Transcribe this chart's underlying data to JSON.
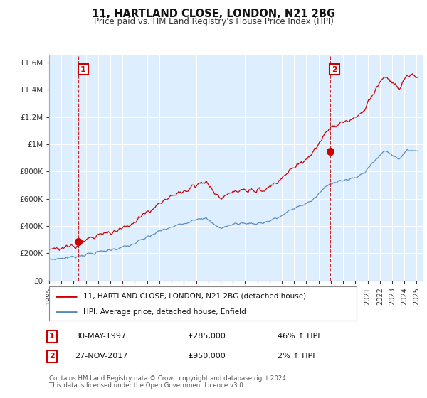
{
  "title": "11, HARTLAND CLOSE, LONDON, N21 2BG",
  "subtitle": "Price paid vs. HM Land Registry's House Price Index (HPI)",
  "ylabel_ticks": [
    "£0",
    "£200K",
    "£400K",
    "£600K",
    "£800K",
    "£1M",
    "£1.2M",
    "£1.4M",
    "£1.6M"
  ],
  "ytick_values": [
    0,
    200000,
    400000,
    600000,
    800000,
    1000000,
    1200000,
    1400000,
    1600000
  ],
  "ylim": [
    0,
    1650000
  ],
  "xlim_start": 1995.0,
  "xlim_end": 2025.5,
  "sale1_x": 1997.41,
  "sale1_y": 285000,
  "sale2_x": 2017.92,
  "sale2_y": 950000,
  "sale1_date": "30-MAY-1997",
  "sale1_price": "£285,000",
  "sale1_hpi": "46% ↑ HPI",
  "sale2_date": "27-NOV-2017",
  "sale2_price": "£950,000",
  "sale2_hpi": "2% ↑ HPI",
  "line_color_property": "#cc0000",
  "line_color_hpi": "#5588bb",
  "dashed_color": "#cc0000",
  "background_color": "#ffffff",
  "plot_bg_color": "#ddeeff",
  "grid_color": "#ffffff",
  "legend_label_property": "11, HARTLAND CLOSE, LONDON, N21 2BG (detached house)",
  "legend_label_hpi": "HPI: Average price, detached house, Enfield",
  "footnote": "Contains HM Land Registry data © Crown copyright and database right 2024.\nThis data is licensed under the Open Government Licence v3.0.",
  "xtick_years": [
    1995,
    1996,
    1997,
    1998,
    1999,
    2000,
    2001,
    2002,
    2003,
    2004,
    2005,
    2006,
    2007,
    2008,
    2009,
    2010,
    2011,
    2012,
    2013,
    2014,
    2015,
    2016,
    2017,
    2018,
    2019,
    2020,
    2021,
    2022,
    2023,
    2024,
    2025
  ]
}
